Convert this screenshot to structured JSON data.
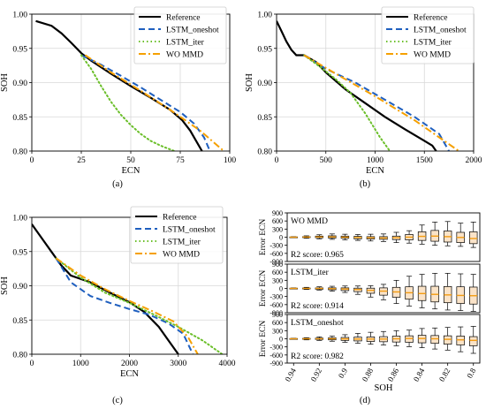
{
  "chart_data": [
    {
      "type": "line",
      "panel_label": "(a)",
      "xlabel": "ECN",
      "ylabel": "SOH",
      "xlim": [
        0,
        100
      ],
      "ylim": [
        0.8,
        1.0
      ],
      "xticks": [
        0,
        25,
        50,
        75,
        100
      ],
      "yticks": [
        0.8,
        0.85,
        0.9,
        0.95,
        1.0
      ],
      "xtick_labels": [
        "0",
        "25",
        "50",
        "75",
        "100"
      ],
      "ytick_labels": [
        "0.80",
        "0.85",
        "0.90",
        "0.95",
        "1.00"
      ],
      "grid": true,
      "legend_position": "top-right",
      "series": [
        {
          "name": "Reference",
          "color": "#000000",
          "style": "solid",
          "x": [
            2,
            10,
            15,
            20,
            25,
            30,
            40,
            50,
            60,
            70,
            76,
            80,
            83,
            86
          ],
          "y": [
            0.99,
            0.983,
            0.972,
            0.958,
            0.943,
            0.932,
            0.913,
            0.895,
            0.878,
            0.86,
            0.845,
            0.83,
            0.815,
            0.8
          ]
        },
        {
          "name": "LSTM_oneshot",
          "color": "#1f5fbf",
          "style": "dashed",
          "x": [
            25,
            35,
            45,
            55,
            65,
            75,
            82,
            87,
            90
          ],
          "y": [
            0.94,
            0.926,
            0.91,
            0.893,
            0.875,
            0.857,
            0.84,
            0.82,
            0.8
          ]
        },
        {
          "name": "LSTM_iter",
          "color": "#6bbf2a",
          "style": "dotted",
          "x": [
            25,
            30,
            35,
            40,
            45,
            50,
            55,
            60,
            65,
            72
          ],
          "y": [
            0.94,
            0.92,
            0.895,
            0.872,
            0.853,
            0.838,
            0.825,
            0.815,
            0.808,
            0.8
          ]
        },
        {
          "name": "WO MMD",
          "color": "#f5a000",
          "style": "dashdot",
          "x": [
            27,
            40,
            55,
            70,
            85,
            97
          ],
          "y": [
            0.94,
            0.915,
            0.888,
            0.86,
            0.83,
            0.8
          ]
        }
      ]
    },
    {
      "type": "line",
      "panel_label": "(b)",
      "xlabel": "ECN",
      "ylabel": "SOH",
      "xlim": [
        0,
        2000
      ],
      "ylim": [
        0.8,
        1.0
      ],
      "xticks": [
        0,
        500,
        1000,
        1500,
        2000
      ],
      "yticks": [
        0.8,
        0.85,
        0.9,
        0.95,
        1.0
      ],
      "xtick_labels": [
        "0",
        "500",
        "1000",
        "1500",
        "2000"
      ],
      "ytick_labels": [
        "0.80",
        "0.85",
        "0.90",
        "0.95",
        "1.00"
      ],
      "grid": true,
      "legend_position": "top-right",
      "series": [
        {
          "name": "Reference",
          "color": "#000000",
          "style": "solid",
          "x": [
            0,
            50,
            100,
            150,
            200,
            280,
            400,
            500,
            700,
            900,
            1100,
            1300,
            1500,
            1580,
            1620
          ],
          "y": [
            0.99,
            0.975,
            0.96,
            0.948,
            0.94,
            0.94,
            0.93,
            0.915,
            0.89,
            0.87,
            0.85,
            0.832,
            0.815,
            0.808,
            0.8
          ]
        },
        {
          "name": "LSTM_oneshot",
          "color": "#1f5fbf",
          "style": "dashed",
          "x": [
            280,
            500,
            800,
            1100,
            1400,
            1650,
            1750
          ],
          "y": [
            0.94,
            0.92,
            0.9,
            0.875,
            0.85,
            0.825,
            0.8
          ]
        },
        {
          "name": "LSTM_iter",
          "color": "#6bbf2a",
          "style": "dotted",
          "x": [
            280,
            450,
            600,
            750,
            900,
            1050,
            1150
          ],
          "y": [
            0.94,
            0.922,
            0.905,
            0.885,
            0.855,
            0.82,
            0.8
          ]
        },
        {
          "name": "WO MMD",
          "color": "#f5a000",
          "style": "dashdot",
          "x": [
            280,
            600,
            1000,
            1400,
            1850
          ],
          "y": [
            0.94,
            0.913,
            0.88,
            0.845,
            0.8
          ]
        }
      ]
    },
    {
      "type": "line",
      "panel_label": "(c)",
      "xlabel": "ECN",
      "ylabel": "SOH",
      "xlim": [
        0,
        4000
      ],
      "ylim": [
        0.8,
        1.0
      ],
      "xticks": [
        0,
        1000,
        2000,
        3000,
        4000
      ],
      "yticks": [
        0.8,
        0.85,
        0.9,
        0.95,
        1.0
      ],
      "xtick_labels": [
        "0",
        "1000",
        "2000",
        "3000",
        "4000"
      ],
      "ytick_labels": [
        "0.80",
        "0.85",
        "0.90",
        "0.95",
        "1.00"
      ],
      "grid": true,
      "legend_position": "top-right",
      "series": [
        {
          "name": "Reference",
          "color": "#000000",
          "style": "solid",
          "x": [
            0,
            200,
            400,
            600,
            800,
            1200,
            1600,
            2000,
            2300,
            2600,
            2800,
            3000
          ],
          "y": [
            0.99,
            0.97,
            0.95,
            0.93,
            0.915,
            0.905,
            0.89,
            0.876,
            0.862,
            0.84,
            0.82,
            0.8
          ]
        },
        {
          "name": "LSTM_oneshot",
          "color": "#1f5fbf",
          "style": "dashed",
          "x": [
            500,
            800,
            1200,
            1600,
            2000,
            2400,
            2800,
            3100,
            3300
          ],
          "y": [
            0.94,
            0.905,
            0.885,
            0.875,
            0.866,
            0.858,
            0.845,
            0.83,
            0.8
          ]
        },
        {
          "name": "LSTM_iter",
          "color": "#6bbf2a",
          "style": "dotted",
          "x": [
            500,
            1000,
            1500,
            2000,
            2500,
            3000,
            3500,
            3900
          ],
          "y": [
            0.94,
            0.912,
            0.89,
            0.875,
            0.858,
            0.84,
            0.82,
            0.8
          ]
        },
        {
          "name": "WO MMD",
          "color": "#f5a000",
          "style": "dashdot",
          "x": [
            500,
            1000,
            1500,
            2000,
            2500,
            2900,
            3200,
            3400
          ],
          "y": [
            0.94,
            0.915,
            0.895,
            0.878,
            0.862,
            0.848,
            0.825,
            0.8
          ]
        }
      ]
    },
    {
      "type": "box",
      "panel_label": "(d)",
      "xlabel": "SOH",
      "x_tick_labels": [
        "0.94",
        "0.92",
        "0.9",
        "0.88",
        "0.86",
        "0.84",
        "0.82",
        "0.8"
      ],
      "categories": [
        "0.94",
        "0.93",
        "0.92",
        "0.91",
        "0.9",
        "0.89",
        "0.88",
        "0.87",
        "0.86",
        "0.85",
        "0.84",
        "0.83",
        "0.82",
        "0.81",
        "0.8"
      ],
      "box_face": "#fae3c8",
      "median_color": "#f39c12",
      "subplots": [
        {
          "name": "WO MMD",
          "ylabel": "Error ECN",
          "ylim": [
            -900,
            900
          ],
          "yticks": [
            -900,
            -600,
            -300,
            0,
            300,
            600,
            900
          ],
          "ytick_labels": [
            "-900",
            "-600",
            "-300",
            "0",
            "300",
            "600",
            "900"
          ],
          "r2_text": "R2 score: 0.965",
          "boxes": [
            {
              "min": -20,
              "q1": -10,
              "med": 0,
              "q3": 10,
              "max": 20
            },
            {
              "min": -40,
              "q1": -15,
              "med": 5,
              "q3": 20,
              "max": 50
            },
            {
              "min": -60,
              "q1": -20,
              "med": 10,
              "q3": 40,
              "max": 90
            },
            {
              "min": -80,
              "q1": -30,
              "med": 10,
              "q3": 50,
              "max": 120
            },
            {
              "min": -100,
              "q1": -40,
              "med": 0,
              "q3": 40,
              "max": 110
            },
            {
              "min": -120,
              "q1": -60,
              "med": -10,
              "q3": 30,
              "max": 100
            },
            {
              "min": -140,
              "q1": -70,
              "med": -20,
              "q3": 20,
              "max": 110
            },
            {
              "min": -160,
              "q1": -80,
              "med": -30,
              "q3": 20,
              "max": 120
            },
            {
              "min": -200,
              "q1": -90,
              "med": -20,
              "q3": 40,
              "max": 180
            },
            {
              "min": -220,
              "q1": -100,
              "med": 0,
              "q3": 100,
              "max": 240
            },
            {
              "min": -260,
              "q1": -120,
              "med": 30,
              "q3": 200,
              "max": 450
            },
            {
              "min": -300,
              "q1": -150,
              "med": 40,
              "q3": 250,
              "max": 560
            },
            {
              "min": -320,
              "q1": -180,
              "med": 20,
              "q3": 230,
              "max": 580
            },
            {
              "min": -340,
              "q1": -200,
              "med": -10,
              "q3": 180,
              "max": 520
            },
            {
              "min": -380,
              "q1": -240,
              "med": -50,
              "q3": 200,
              "max": 560
            }
          ]
        },
        {
          "name": "LSTM_iter",
          "ylabel": "Error ECN",
          "ylim": [
            -900,
            900
          ],
          "yticks": [
            -900,
            -600,
            -300,
            0,
            300,
            600,
            900
          ],
          "ytick_labels": [
            "-900",
            "-600",
            "-300",
            "0",
            "300",
            "600",
            "900"
          ],
          "r2_text": "R2 score: 0.914",
          "boxes": [
            {
              "min": -20,
              "q1": -10,
              "med": 0,
              "q3": 10,
              "max": 20
            },
            {
              "min": -40,
              "q1": -20,
              "med": 0,
              "q3": 15,
              "max": 40
            },
            {
              "min": -60,
              "q1": -30,
              "med": 0,
              "q3": 20,
              "max": 60
            },
            {
              "min": -100,
              "q1": -50,
              "med": -10,
              "q3": 20,
              "max": 80
            },
            {
              "min": -150,
              "q1": -80,
              "med": -20,
              "q3": 20,
              "max": 90
            },
            {
              "min": -220,
              "q1": -120,
              "med": -40,
              "q3": 10,
              "max": 90
            },
            {
              "min": -320,
              "q1": -180,
              "med": -70,
              "q3": 10,
              "max": 100
            },
            {
              "min": -420,
              "q1": -250,
              "med": -100,
              "q3": 20,
              "max": 150
            },
            {
              "min": -560,
              "q1": -330,
              "med": -130,
              "q3": 40,
              "max": 300
            },
            {
              "min": -650,
              "q1": -400,
              "med": -160,
              "q3": 60,
              "max": 450
            },
            {
              "min": -720,
              "q1": -450,
              "med": -190,
              "q3": 80,
              "max": 520
            },
            {
              "min": -760,
              "q1": -500,
              "med": -220,
              "q3": 80,
              "max": 560
            },
            {
              "min": -800,
              "q1": -530,
              "med": -240,
              "q3": 70,
              "max": 560
            },
            {
              "min": -820,
              "q1": -560,
              "med": -260,
              "q3": 60,
              "max": 540
            },
            {
              "min": -850,
              "q1": -580,
              "med": -270,
              "q3": 50,
              "max": 520
            }
          ]
        },
        {
          "name": "LSTM_oneshot",
          "ylabel": "Error ECN",
          "ylim": [
            -900,
            900
          ],
          "yticks": [
            -900,
            -600,
            -300,
            0,
            300,
            600,
            900
          ],
          "ytick_labels": [
            "-900",
            "-600",
            "-300",
            "0",
            "300",
            "600",
            "900"
          ],
          "r2_text": "R2 score: 0.982",
          "boxes": [
            {
              "min": -20,
              "q1": -10,
              "med": 0,
              "q3": 10,
              "max": 20
            },
            {
              "min": -40,
              "q1": -15,
              "med": 0,
              "q3": 15,
              "max": 40
            },
            {
              "min": -60,
              "q1": -25,
              "med": 0,
              "q3": 25,
              "max": 70
            },
            {
              "min": -90,
              "q1": -40,
              "med": 0,
              "q3": 35,
              "max": 100
            },
            {
              "min": -130,
              "q1": -60,
              "med": -5,
              "q3": 50,
              "max": 150
            },
            {
              "min": -170,
              "q1": -80,
              "med": -10,
              "q3": 60,
              "max": 200
            },
            {
              "min": -200,
              "q1": -100,
              "med": -10,
              "q3": 70,
              "max": 240
            },
            {
              "min": -230,
              "q1": -110,
              "med": -10,
              "q3": 80,
              "max": 270
            },
            {
              "min": -260,
              "q1": -120,
              "med": 0,
              "q3": 100,
              "max": 300
            },
            {
              "min": -290,
              "q1": -130,
              "med": 10,
              "q3": 110,
              "max": 320
            },
            {
              "min": -330,
              "q1": -150,
              "med": 10,
              "q3": 130,
              "max": 380
            },
            {
              "min": -380,
              "q1": -170,
              "med": 0,
              "q3": 120,
              "max": 400
            },
            {
              "min": -420,
              "q1": -200,
              "med": -20,
              "q3": 110,
              "max": 420
            },
            {
              "min": -480,
              "q1": -230,
              "med": -40,
              "q3": 100,
              "max": 440
            },
            {
              "min": -540,
              "q1": -260,
              "med": -60,
              "q3": 80,
              "max": 460
            }
          ]
        }
      ]
    }
  ]
}
